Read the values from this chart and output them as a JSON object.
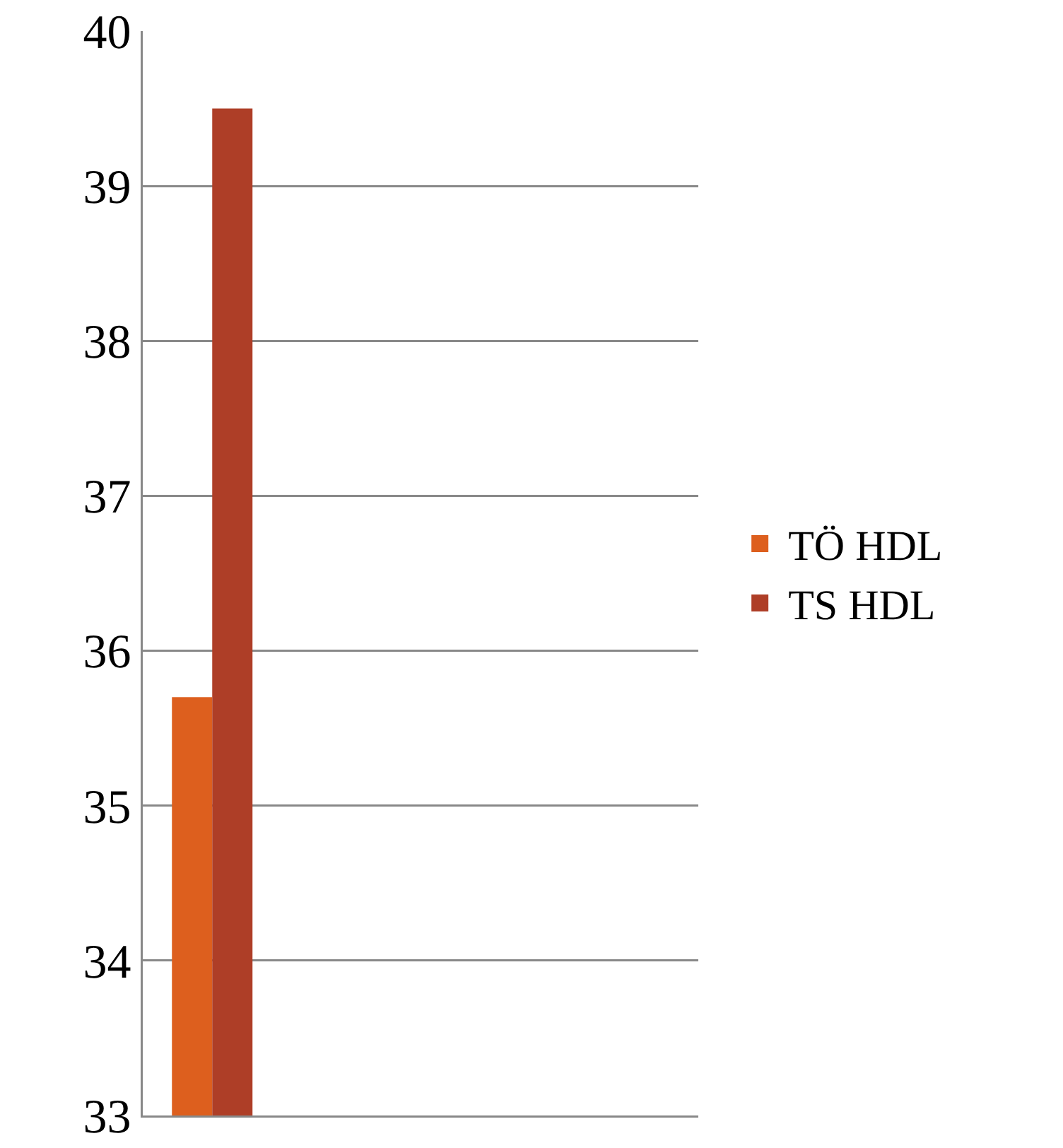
{
  "chart_data": {
    "type": "bar",
    "categories": [
      null,
      null,
      null,
      null
    ],
    "series": [
      {
        "name": "TÖ HDL",
        "color": "#dd5f1e",
        "values": [
          35.7,
          null,
          null,
          null
        ]
      },
      {
        "name": "TS HDL",
        "color": "#ae3e27",
        "values": [
          39.5,
          null,
          null,
          null
        ]
      }
    ],
    "ylim": [
      33,
      40
    ],
    "yticks": [
      33,
      34,
      35,
      36,
      37,
      38,
      39,
      40
    ],
    "grid": "y",
    "legend": "right"
  }
}
